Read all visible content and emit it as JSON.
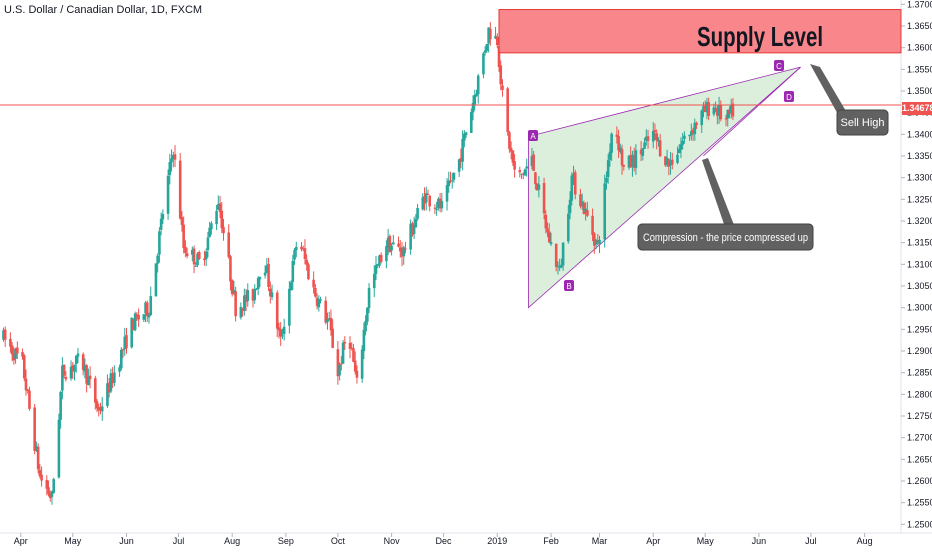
{
  "header": {
    "symbol_title": "U.S. Dollar / Canadian Dollar, 1D, FXCM"
  },
  "price_axis": {
    "ticks": [
      "1.37000",
      "1.36500",
      "1.36000",
      "1.35500",
      "1.35000",
      "1.34500",
      "1.34000",
      "1.33500",
      "1.33000",
      "1.32500",
      "1.32000",
      "1.31500",
      "1.31000",
      "1.30500",
      "1.30000",
      "1.29500",
      "1.29000",
      "1.28500",
      "1.28000",
      "1.27500",
      "1.27000",
      "1.26500",
      "1.26000",
      "1.25500",
      "1.25000"
    ],
    "current_price": "1.34678"
  },
  "time_axis": {
    "ticks": [
      "Apr",
      "May",
      "Jun",
      "Jul",
      "Aug",
      "Sep",
      "Oct",
      "Nov",
      "Dec",
      "2019",
      "Feb",
      "Mar",
      "Apr",
      "May",
      "Jun",
      "Jul",
      "Aug"
    ]
  },
  "annotations": {
    "supply_zone_label": "Supply Level",
    "sell_label": "Sell High",
    "compression_label": "Compression - the price compressed up",
    "point_a": "A",
    "point_b": "B",
    "point_c": "C",
    "point_d": "D"
  },
  "colors": {
    "bull": "#26a69a",
    "bear": "#ef5350",
    "supply_fill": "#f77c80",
    "triangle_fill": "#c8e6c9",
    "purple": "#9c27b0",
    "price_line": "#ef5350"
  },
  "chart_data": {
    "type": "candlestick",
    "instrument": "U.S. Dollar / Canadian Dollar",
    "interval": "1D",
    "ylim": [
      1.248,
      1.371
    ],
    "x_ticks": [
      "Apr",
      "May",
      "Jun",
      "Jul",
      "Aug",
      "Sep",
      "Oct",
      "Nov",
      "Dec",
      "2019",
      "Feb",
      "Mar",
      "Apr",
      "May",
      "Jun",
      "Jul",
      "Aug"
    ],
    "close_path": [
      [
        "2018-03-22",
        1.293
      ],
      [
        "2018-04-02",
        1.287
      ],
      [
        "2018-04-12",
        1.261
      ],
      [
        "2018-04-19",
        1.256
      ],
      [
        "2018-04-25",
        1.285
      ],
      [
        "2018-05-06",
        1.288
      ],
      [
        "2018-05-16",
        1.276
      ],
      [
        "2018-05-26",
        1.286
      ],
      [
        "2018-06-04",
        1.296
      ],
      [
        "2018-06-14",
        1.3
      ],
      [
        "2018-06-22",
        1.322
      ],
      [
        "2018-06-28",
        1.337
      ],
      [
        "2018-07-04",
        1.314
      ],
      [
        "2018-07-14",
        1.31
      ],
      [
        "2018-07-24",
        1.325
      ],
      [
        "2018-08-03",
        1.3
      ],
      [
        "2018-08-13",
        1.303
      ],
      [
        "2018-08-19",
        1.312
      ],
      [
        "2018-08-29",
        1.292
      ],
      [
        "2018-09-08",
        1.317
      ],
      [
        "2018-09-16",
        1.305
      ],
      [
        "2018-09-26",
        1.296
      ],
      [
        "2018-10-01",
        1.285
      ],
      [
        "2018-10-07",
        1.295
      ],
      [
        "2018-10-12",
        1.282
      ],
      [
        "2018-10-19",
        1.304
      ],
      [
        "2018-10-29",
        1.315
      ],
      [
        "2018-11-08",
        1.313
      ],
      [
        "2018-11-20",
        1.326
      ],
      [
        "2018-11-30",
        1.323
      ],
      [
        "2018-12-10",
        1.334
      ],
      [
        "2018-12-20",
        1.351
      ],
      [
        "2018-12-27",
        1.364
      ],
      [
        "2019-01-01",
        1.362
      ],
      [
        "2019-01-05",
        1.344
      ],
      [
        "2019-01-12",
        1.329
      ],
      [
        "2019-01-21",
        1.334
      ],
      [
        "2019-01-30",
        1.317
      ],
      [
        "2019-02-06",
        1.308
      ],
      [
        "2019-02-13",
        1.33
      ],
      [
        "2019-02-20",
        1.323
      ],
      [
        "2019-02-28",
        1.314
      ],
      [
        "2019-03-09",
        1.344
      ],
      [
        "2019-03-15",
        1.332
      ],
      [
        "2019-03-23",
        1.335
      ],
      [
        "2019-04-01",
        1.34
      ],
      [
        "2019-04-10",
        1.333
      ],
      [
        "2019-04-19",
        1.339
      ],
      [
        "2019-04-28",
        1.344
      ],
      [
        "2019-05-05",
        1.347
      ],
      [
        "2019-05-13",
        1.343
      ],
      [
        "2019-05-18",
        1.346
      ]
    ],
    "levels": {
      "current_price": 1.34678,
      "supply_zone": [
        1.3588,
        1.3688
      ]
    },
    "triangle": {
      "A": [
        "2019-01-19",
        1.3395
      ],
      "B": [
        "2019-01-19",
        1.3
      ],
      "apex": [
        "2019-06-25",
        1.3555
      ]
    }
  }
}
